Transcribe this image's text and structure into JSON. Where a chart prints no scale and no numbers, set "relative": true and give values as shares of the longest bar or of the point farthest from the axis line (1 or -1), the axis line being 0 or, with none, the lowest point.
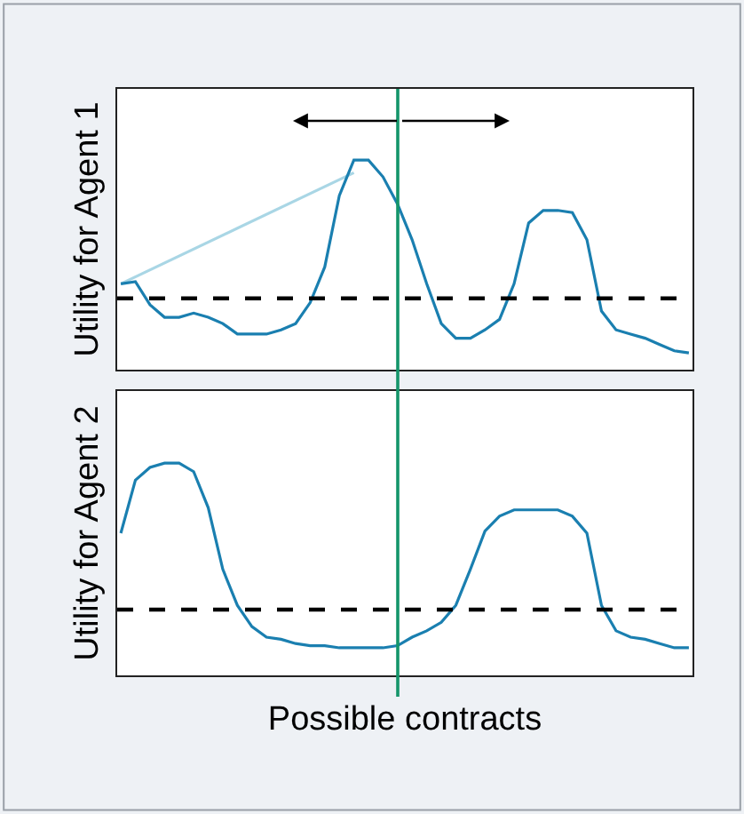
{
  "chart_data": [
    {
      "type": "line",
      "relative": true,
      "ylabel": "Utility for Agent 1",
      "categories": [
        null,
        null,
        null,
        null,
        null,
        null,
        null,
        null,
        null,
        null,
        null,
        null,
        null,
        null,
        null,
        null,
        null,
        null,
        null,
        null,
        null,
        null,
        null,
        null,
        null,
        null,
        null,
        null,
        null,
        null,
        null,
        null,
        null,
        null,
        null,
        null,
        null,
        null,
        null,
        null
      ],
      "series": [
        {
          "color": "#a9d6e5",
          "values": [
            0.41,
            null,
            null,
            null,
            null,
            null,
            null,
            null,
            null,
            null,
            null,
            null,
            null,
            null,
            null,
            null,
            0.94,
            null,
            null,
            null,
            null,
            null,
            null,
            null,
            null,
            null,
            null,
            null,
            null,
            null,
            null,
            null,
            null,
            null,
            null,
            null,
            null,
            null,
            null,
            null
          ]
        },
        {
          "color": "#1a7fb0",
          "values": [
            0.41,
            0.42,
            0.31,
            0.25,
            0.25,
            0.27,
            0.25,
            0.22,
            0.17,
            0.17,
            0.17,
            0.19,
            0.22,
            0.32,
            0.49,
            0.83,
            1,
            1,
            0.92,
            0.79,
            0.62,
            0.41,
            0.22,
            0.15,
            0.15,
            0.19,
            0.24,
            0.41,
            0.7,
            0.76,
            0.76,
            0.75,
            0.62,
            0.28,
            0.19,
            0.17,
            0.15,
            0.12,
            0.09,
            0.08
          ]
        }
      ],
      "ref_lines": [
        {
          "axis": "y",
          "value": 0.34,
          "color": "#000000",
          "line_style": "dashed"
        }
      ]
    },
    {
      "type": "line",
      "relative": true,
      "ylabel": "Utility for Agent 2",
      "xlabel": "Possible contracts",
      "categories": [
        null,
        null,
        null,
        null,
        null,
        null,
        null,
        null,
        null,
        null,
        null,
        null,
        null,
        null,
        null,
        null,
        null,
        null,
        null,
        null,
        null,
        null,
        null,
        null,
        null,
        null,
        null,
        null,
        null,
        null,
        null,
        null,
        null,
        null,
        null,
        null,
        null,
        null,
        null,
        null
      ],
      "series": [
        {
          "color": "#1a7fb0",
          "values": [
            0.67,
            0.92,
            0.98,
            1,
            1,
            0.96,
            0.79,
            0.5,
            0.33,
            0.23,
            0.18,
            0.17,
            0.15,
            0.14,
            0.14,
            0.13,
            0.13,
            0.13,
            0.13,
            0.14,
            0.18,
            0.21,
            0.25,
            0.33,
            0.5,
            0.68,
            0.75,
            0.78,
            0.78,
            0.78,
            0.78,
            0.75,
            0.67,
            0.33,
            0.21,
            0.18,
            0.17,
            0.15,
            0.13,
            0.13
          ]
        }
      ],
      "ref_lines": [
        {
          "axis": "y",
          "value": 0.31,
          "color": "#000000",
          "line_style": "dashed"
        }
      ]
    }
  ]
}
